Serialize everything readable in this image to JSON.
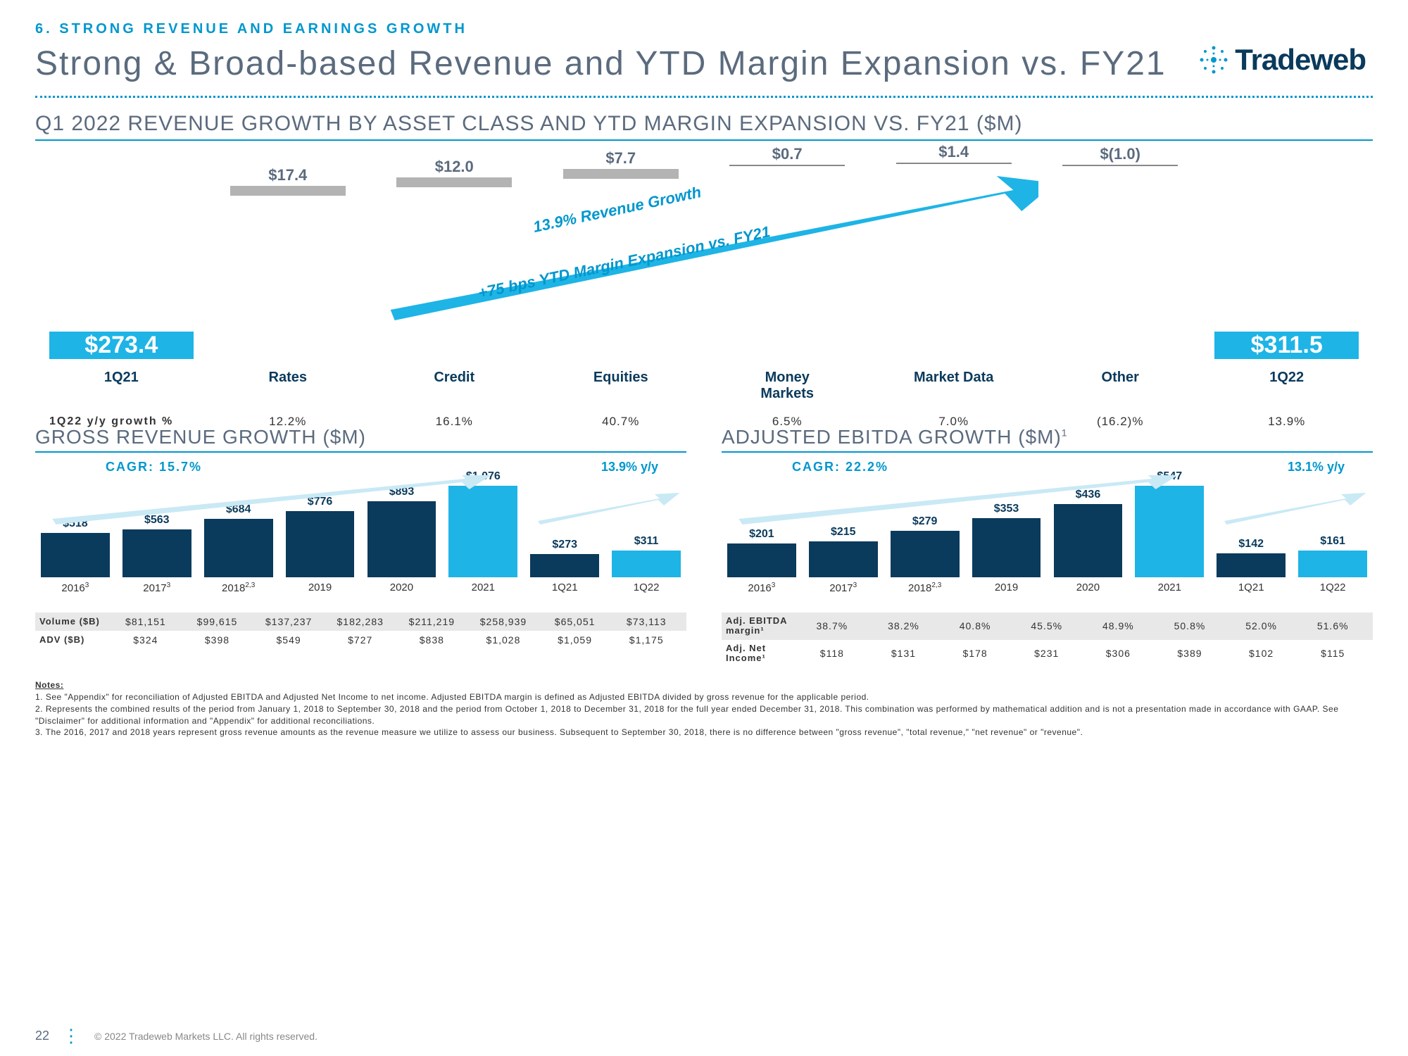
{
  "header": {
    "section_label": "6. STRONG REVENUE AND EARNINGS GROWTH",
    "main_title": "Strong & Broad-based Revenue and YTD Margin Expansion vs. FY21",
    "logo_text": "Tradeweb"
  },
  "waterfall": {
    "title": "Q1 2022 REVENUE GROWTH BY ASSET CLASS AND YTD MARGIN EXPANSION VS. FY21 ($M)",
    "start": {
      "label": "1Q21",
      "value": "$273.4",
      "height_pct": 80
    },
    "end": {
      "label": "1Q22",
      "value": "$311.5",
      "height_pct": 92
    },
    "steps": [
      {
        "cat": "Rates",
        "label": "$17.4",
        "top_pct": 18,
        "type": "bar"
      },
      {
        "cat": "Credit",
        "label": "$12.0",
        "top_pct": 14,
        "type": "bar"
      },
      {
        "cat": "Equities",
        "label": "$7.7",
        "top_pct": 10,
        "type": "bar"
      },
      {
        "cat": "Money\nMarkets",
        "label": "$0.7",
        "top_pct": 8,
        "type": "line"
      },
      {
        "cat": "Market Data",
        "label": "$1.4",
        "top_pct": 7,
        "type": "line"
      },
      {
        "cat": "Other",
        "label": "$(1.0)",
        "top_pct": 8,
        "type": "line"
      }
    ],
    "growth_label": "1Q22 y/y growth %",
    "growth_values": [
      "12.2%",
      "16.1%",
      "40.7%",
      "6.5%",
      "7.0%",
      "(16.2)%",
      "13.9%"
    ],
    "arrow_text_top": "13.9% Revenue Growth",
    "arrow_text_bottom": "+75 bps YTD Margin Expansion vs. FY21"
  },
  "gross_chart": {
    "title": "GROSS REVENUE GROWTH ($M)",
    "cagr": "CAGR: 15.7%",
    "yoy": "13.9% y/y",
    "max": 1076,
    "bars": [
      {
        "year": "2016",
        "sup": "3",
        "value": 518,
        "label": "$518",
        "color": "dark"
      },
      {
        "year": "2017",
        "sup": "3",
        "value": 563,
        "label": "$563",
        "color": "dark"
      },
      {
        "year": "2018",
        "sup": "2,3",
        "value": 684,
        "label": "$684",
        "color": "dark"
      },
      {
        "year": "2019",
        "sup": "",
        "value": 776,
        "label": "$776",
        "color": "dark"
      },
      {
        "year": "2020",
        "sup": "",
        "value": 893,
        "label": "$893",
        "color": "dark"
      },
      {
        "year": "2021",
        "sup": "",
        "value": 1076,
        "label": "$1,076",
        "color": "light"
      },
      {
        "year": "1Q21",
        "sup": "",
        "value": 273,
        "label": "$273",
        "color": "dark"
      },
      {
        "year": "1Q22",
        "sup": "",
        "value": 311,
        "label": "$311",
        "color": "light"
      }
    ],
    "rows": [
      {
        "label": "Volume ($B)",
        "values": [
          "$81,151",
          "$99,615",
          "$137,237",
          "$182,283",
          "$211,219",
          "$258,939",
          "$65,051",
          "$73,113"
        ]
      },
      {
        "label": "ADV ($B)",
        "values": [
          "$324",
          "$398",
          "$549",
          "$727",
          "$838",
          "$1,028",
          "$1,059",
          "$1,175"
        ]
      }
    ]
  },
  "ebitda_chart": {
    "title": "ADJUSTED EBITDA GROWTH ($M)",
    "title_sup": "1",
    "cagr": "CAGR: 22.2%",
    "yoy": "13.1% y/y",
    "max": 547,
    "bars": [
      {
        "year": "2016",
        "sup": "3",
        "value": 201,
        "label": "$201",
        "color": "dark"
      },
      {
        "year": "2017",
        "sup": "3",
        "value": 215,
        "label": "$215",
        "color": "dark"
      },
      {
        "year": "2018",
        "sup": "2,3",
        "value": 279,
        "label": "$279",
        "color": "dark"
      },
      {
        "year": "2019",
        "sup": "",
        "value": 353,
        "label": "$353",
        "color": "dark"
      },
      {
        "year": "2020",
        "sup": "",
        "value": 436,
        "label": "$436",
        "color": "dark"
      },
      {
        "year": "2021",
        "sup": "",
        "value": 547,
        "label": "$547",
        "color": "light"
      },
      {
        "year": "1Q21",
        "sup": "",
        "value": 142,
        "label": "$142",
        "color": "dark"
      },
      {
        "year": "1Q22",
        "sup": "",
        "value": 161,
        "label": "$161",
        "color": "light"
      }
    ],
    "rows": [
      {
        "label": "Adj. EBITDA margin¹",
        "values": [
          "38.7%",
          "38.2%",
          "40.8%",
          "45.5%",
          "48.9%",
          "50.8%",
          "52.0%",
          "51.6%"
        ]
      },
      {
        "label": "Adj. Net Income¹",
        "values": [
          "$118",
          "$131",
          "$178",
          "$231",
          "$306",
          "$389",
          "$102",
          "$115"
        ]
      }
    ]
  },
  "notes": {
    "heading": "Notes:",
    "items": [
      "1.  See \"Appendix\" for reconciliation of Adjusted EBITDA and Adjusted Net Income to net income. Adjusted EBITDA margin is defined as Adjusted EBITDA divided by gross revenue for the applicable period.",
      "2.  Represents the combined results of the period from January 1, 2018 to September 30, 2018 and the period from October 1, 2018 to December 31, 2018 for the full year ended December 31, 2018. This combination was performed by mathematical addition and is not a presentation made in accordance with GAAP. See \"Disclaimer\" for additional information and \"Appendix\" for additional reconciliations.",
      "3.  The 2016, 2017 and 2018 years represent gross revenue amounts as the revenue measure we utilize to assess our business. Subsequent to September 30, 2018, there is no difference between \"gross revenue\", \"total revenue,\" \"net revenue\" or \"revenue\"."
    ]
  },
  "footer": {
    "page": "22",
    "copyright": "© 2022 Tradeweb Markets LLC. All rights reserved."
  },
  "colors": {
    "brand_light": "#1eb4e6",
    "brand_dark": "#0a3a5c",
    "accent": "#0097ce",
    "grey_bar": "#b3b3b3",
    "text_grey": "#5b6b7e"
  }
}
